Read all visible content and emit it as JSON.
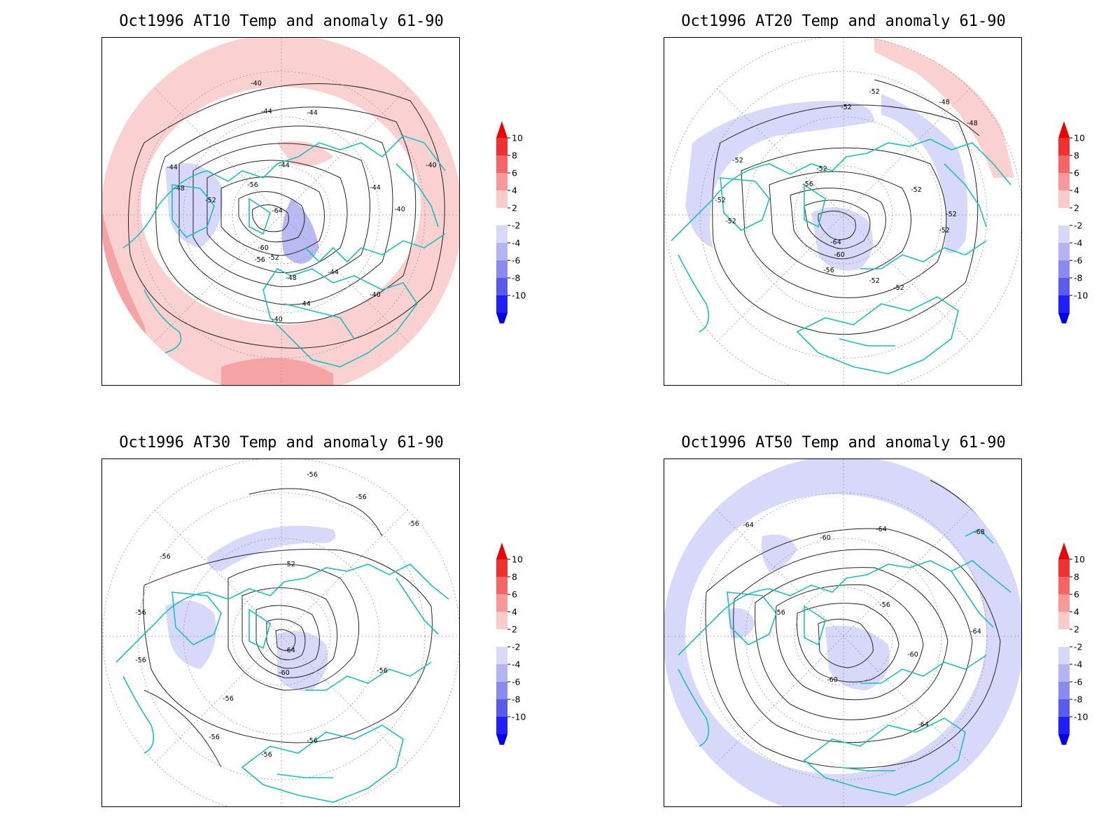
{
  "panels": [
    {
      "id": "at10",
      "title": "Oct1996 AT10 Temp and anomaly 61-90",
      "contour_labels": [
        "-40",
        "-40",
        "-40",
        "-40",
        "-40",
        "-44",
        "-44",
        "-44",
        "-44",
        "-44",
        "-44",
        "-44",
        "-48",
        "-48",
        "-52",
        "-52",
        "-56",
        "-56",
        "-60",
        "-64"
      ]
    },
    {
      "id": "at20",
      "title": "Oct1996 AT20 Temp and anomaly 61-90",
      "contour_labels": [
        "-48",
        "-48",
        "-52",
        "-52",
        "-52",
        "-52",
        "-52",
        "-52",
        "-52",
        "-52",
        "-52",
        "-52",
        "-52",
        "-56",
        "-56",
        "-60",
        "-64"
      ]
    },
    {
      "id": "at30",
      "title": "Oct1996 AT30 Temp and anomaly 61-90",
      "contour_labels": [
        "-56",
        "-56",
        "-56",
        "-56",
        "-56",
        "-56",
        "-56",
        "-56",
        "-56",
        "-56",
        "-56",
        "-52",
        "-60",
        "-64"
      ]
    },
    {
      "id": "at50",
      "title": "Oct1996 AT50 Temp and anomaly 61-90",
      "contour_labels": [
        "-64",
        "-64",
        "-68",
        "-60",
        "-56",
        "-56",
        "-60",
        "-60",
        "-64",
        "-64"
      ]
    }
  ],
  "colorbar": {
    "labels": [
      "10",
      "8",
      "6",
      "4",
      "2",
      "-2",
      "-4",
      "-6",
      "-8",
      "-10"
    ],
    "colors": [
      "#f23030",
      "#f56565",
      "#f89898",
      "#fbcaca",
      "#ffffff",
      "#d8d8fa",
      "#b4b4f5",
      "#8a8af0",
      "#5a5aee",
      "#1e1eff"
    ],
    "top_arrow_color": "#ee0000",
    "bottom_arrow_color": "#0000ee"
  },
  "colors": {
    "coast": "#17c1c1",
    "warm_anomaly": "#fbd0d0",
    "strong_warm_anomaly": "#f6a3a3",
    "cool_anomaly": "#d8d8fa",
    "strong_cool_anomaly": "#b9b9f3",
    "contour": "#222222",
    "grid": "#9a9a9a"
  }
}
